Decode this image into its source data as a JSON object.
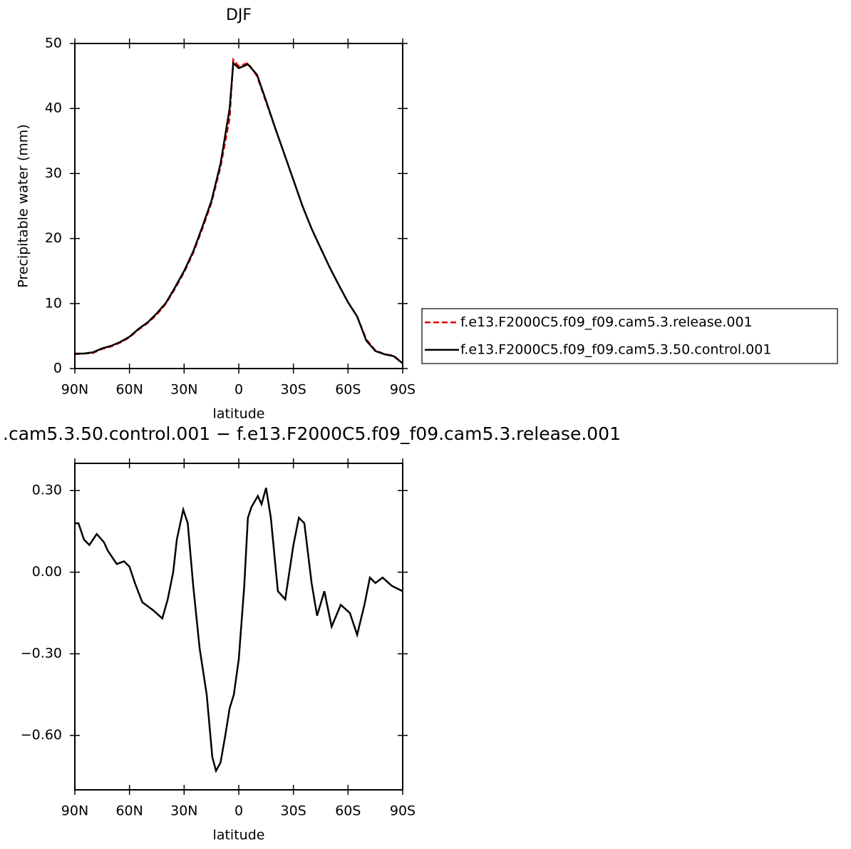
{
  "chart_data": [
    {
      "type": "line",
      "title": "DJF",
      "xlabel": "latitude",
      "ylabel": "Precipitable water (mm)",
      "x": [
        90,
        85,
        80,
        75,
        70,
        65,
        60,
        55,
        50,
        45,
        40,
        35,
        30,
        25,
        20,
        15,
        10,
        5,
        3,
        0,
        -5,
        -10,
        -15,
        -20,
        -25,
        -30,
        -35,
        -40,
        -45,
        -50,
        -55,
        -60,
        -65,
        -70,
        -75,
        -80,
        -85,
        -90
      ],
      "series": [
        {
          "name": "f.e13.F2000C5.f09_f09.cam5.3.release.001",
          "color": "#e00000",
          "dashed": true,
          "values": [
            2.2,
            2.3,
            2.4,
            3.0,
            3.4,
            4.0,
            4.8,
            6.0,
            7.0,
            8.3,
            10.0,
            12.3,
            14.8,
            17.8,
            21.5,
            25.5,
            31,
            38.5,
            47.5,
            46.5,
            47,
            45,
            41,
            37,
            33,
            29,
            25,
            21.5,
            18.5,
            15.5,
            12.8,
            10.2,
            8,
            4.5,
            2.8,
            2.2,
            2,
            0.8
          ]
        },
        {
          "name": "f.e13.F2000C5.f09_f09.cam5.3.50.control.001",
          "color": "#000000",
          "dashed": false,
          "values": [
            2.3,
            2.3,
            2.5,
            3.1,
            3.5,
            4.1,
            4.9,
            6.1,
            7.1,
            8.5,
            10.1,
            12.5,
            15,
            18,
            21.8,
            25.8,
            31.5,
            40,
            47,
            46.2,
            46.8,
            45.2,
            41.2,
            37,
            33,
            29,
            25,
            21.5,
            18.5,
            15.5,
            12.8,
            10.2,
            8,
            4.3,
            2.7,
            2.2,
            1.9,
            0.8
          ]
        }
      ],
      "xlim": [
        90,
        -90
      ],
      "xticks": [
        {
          "value": 90,
          "label": "90N"
        },
        {
          "value": 60,
          "label": "60N"
        },
        {
          "value": 30,
          "label": "30N"
        },
        0,
        {
          "value": -30,
          "label": "30S"
        },
        {
          "value": -60,
          "label": "60S"
        },
        {
          "value": -90,
          "label": "90S"
        }
      ],
      "ylim": [
        0,
        50
      ],
      "yticks": [
        0,
        10,
        20,
        30,
        40,
        50
      ],
      "legend": "right"
    },
    {
      "type": "line",
      "title": ".cam5.3.50.control.001 − f.e13.F2000C5.f09_f09.cam5.3.release.001",
      "xlabel": "latitude",
      "x": [
        90,
        88,
        85,
        82,
        78,
        74,
        72,
        67,
        63,
        60,
        57,
        53,
        51,
        47,
        42,
        39,
        36,
        34,
        30.5,
        28,
        25,
        21.5,
        17.6,
        14.5,
        12.5,
        10,
        7.4,
        5,
        2.7,
        0,
        -3,
        -5,
        -7,
        -10.5,
        -12.5,
        -15,
        -17.6,
        -21.5,
        -25.5,
        -30,
        -33,
        -36,
        -40,
        -43,
        -47,
        -51,
        -56,
        -61,
        -65,
        -69,
        -72,
        -75,
        -79,
        -84,
        -90
      ],
      "series": [
        {
          "color": "#000000",
          "values": [
            0.18,
            0.18,
            0.12,
            0.1,
            0.14,
            0.11,
            0.08,
            0.03,
            0.04,
            0.02,
            -0.04,
            -0.11,
            -0.12,
            -0.14,
            -0.17,
            -0.1,
            0.0,
            0.12,
            0.23,
            0.18,
            -0.05,
            -0.28,
            -0.45,
            -0.68,
            -0.73,
            -0.7,
            -0.6,
            -0.5,
            -0.45,
            -0.32,
            -0.05,
            0.2,
            0.24,
            0.28,
            0.25,
            0.31,
            0.2,
            -0.07,
            -0.1,
            0.1,
            0.2,
            0.18,
            -0.04,
            -0.16,
            -0.07,
            -0.2,
            -0.12,
            -0.15,
            -0.23,
            -0.12,
            -0.02,
            -0.04,
            -0.02,
            -0.05,
            -0.07
          ]
        }
      ],
      "xlim": [
        90,
        -90
      ],
      "xticks": [
        {
          "value": 90,
          "label": "90N"
        },
        {
          "value": 60,
          "label": "60N"
        },
        {
          "value": 30,
          "label": "30N"
        },
        0,
        {
          "value": -30,
          "label": "30S"
        },
        {
          "value": -60,
          "label": "60S"
        },
        {
          "value": -90,
          "label": "90S"
        }
      ],
      "ylim": [
        -0.8,
        0.4
      ],
      "yticks": [
        {
          "value": -0.6,
          "label": "−0.60"
        },
        {
          "value": -0.3,
          "label": "−0.30"
        },
        {
          "value": 0,
          "label": "0.00"
        },
        {
          "value": 0.3,
          "label": "0.30"
        }
      ]
    }
  ]
}
